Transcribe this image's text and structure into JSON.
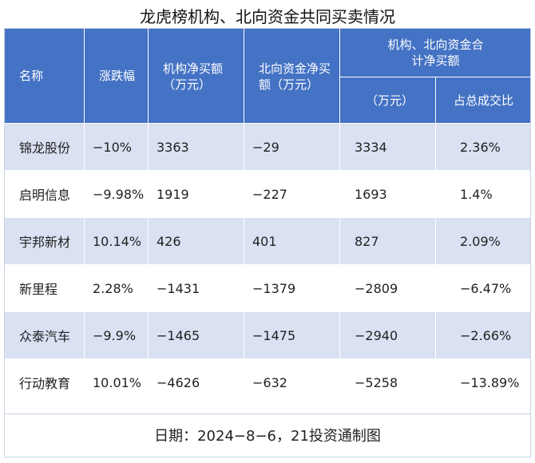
{
  "title": "龙虎榜机构、北向资金共同买卖情况",
  "headers": {
    "name": "名称",
    "change": "涨跌幅",
    "inst_net": "机构净买额（万元）",
    "north_net": "北向资金净买额（万元）",
    "combined_group": "机构、北向资金合计净买额",
    "combined_amount": "（万元）",
    "combined_ratio": "占总成交比"
  },
  "rows": [
    {
      "name": "锦龙股份",
      "change": "−10%",
      "inst_net": "3363",
      "north_net": "−29",
      "combined": "3334",
      "ratio": "2.36%"
    },
    {
      "name": "启明信息",
      "change": "−9.98%",
      "inst_net": "1919",
      "north_net": "−227",
      "combined": "1693",
      "ratio": "1.4%"
    },
    {
      "name": "宇邦新材",
      "change": "10.14%",
      "inst_net": "426",
      "north_net": "401",
      "combined": "827",
      "ratio": "2.09%"
    },
    {
      "name": "新里程",
      "change": "2.28%",
      "inst_net": "−1431",
      "north_net": "−1379",
      "combined": "−2809",
      "ratio": "−6.47%"
    },
    {
      "name": "众泰汽车",
      "change": "−9.9%",
      "inst_net": "−1465",
      "north_net": "−1475",
      "combined": "−2940",
      "ratio": "−2.66%"
    },
    {
      "name": "行动教育",
      "change": "10.01%",
      "inst_net": "−4626",
      "north_net": "−632",
      "combined": "−5258",
      "ratio": "−13.89%"
    }
  ],
  "footer": "日期：2024−8−6，21投资通制图"
}
